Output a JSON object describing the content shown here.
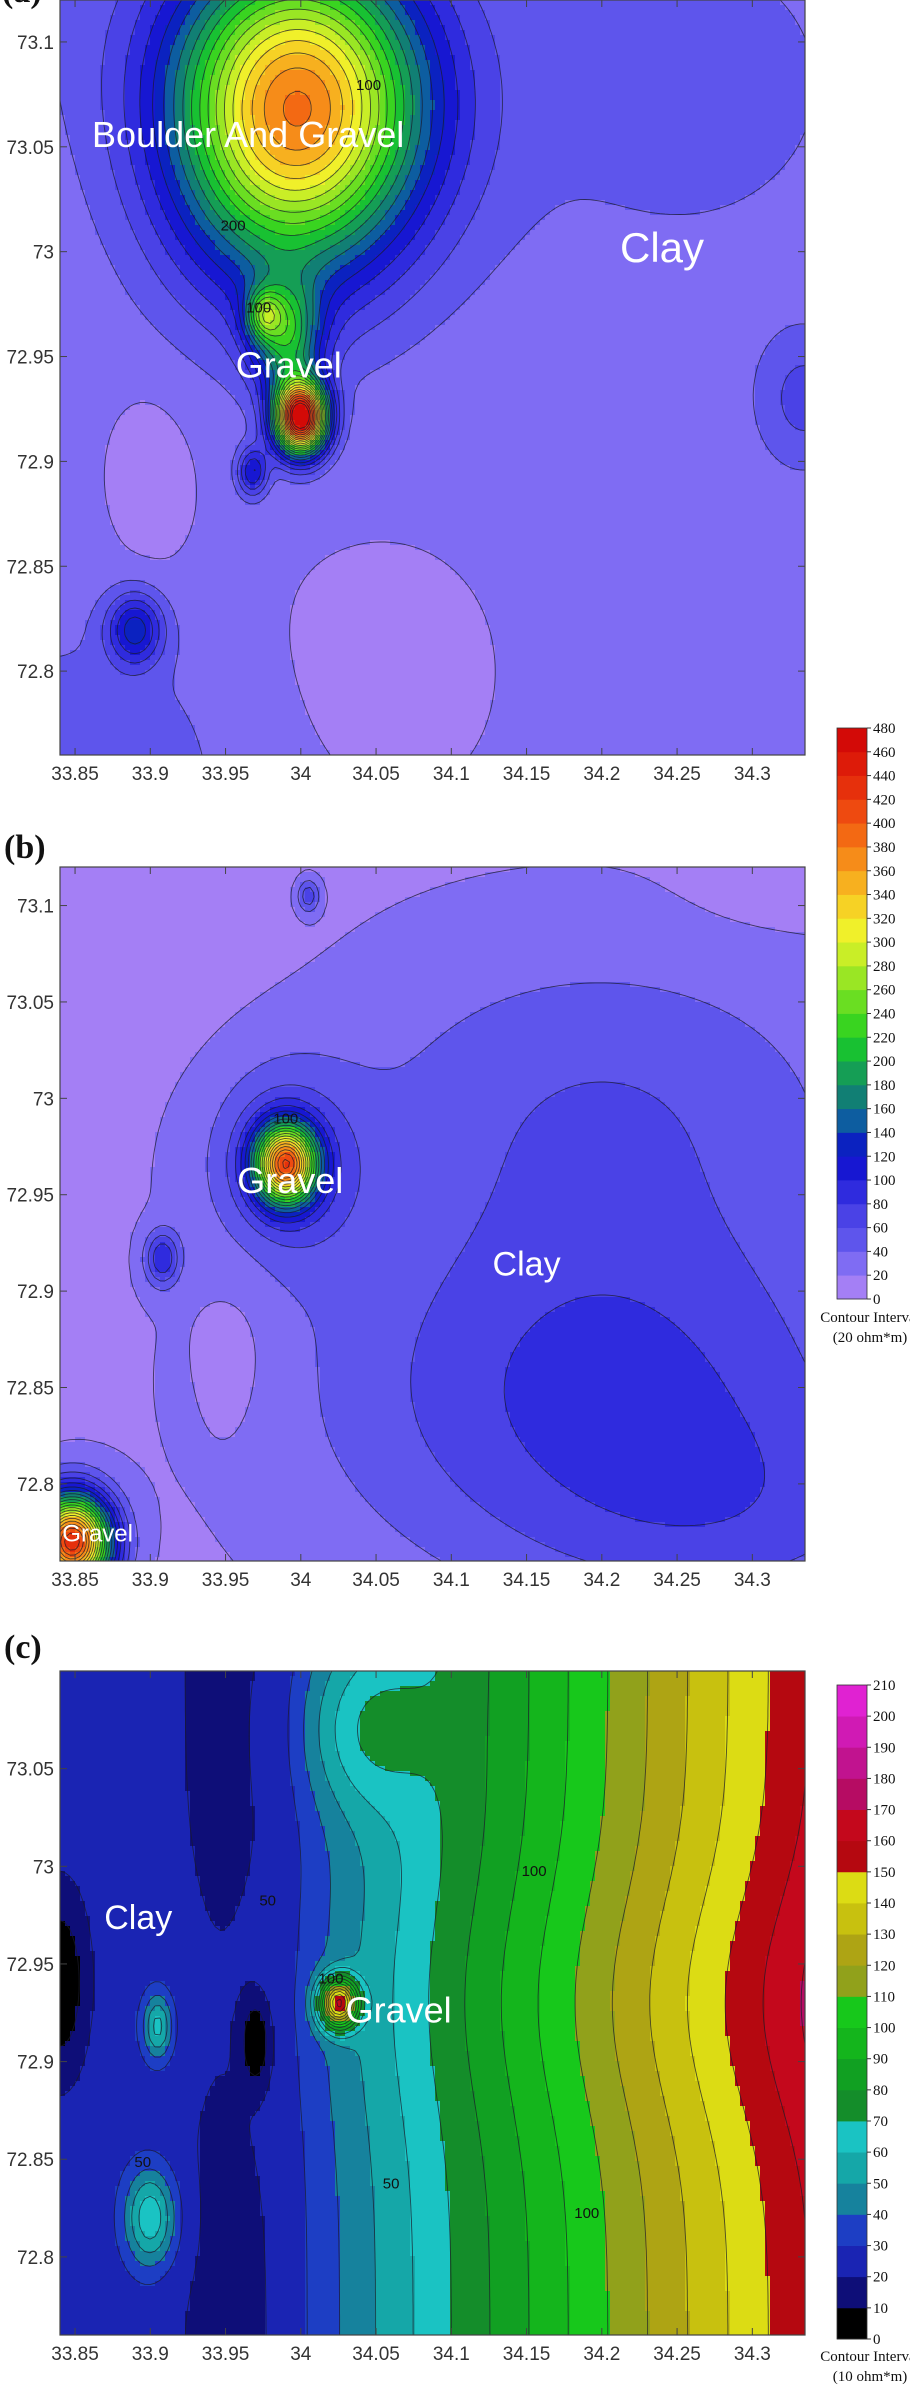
{
  "chart_data": [
    {
      "type": "contour",
      "panel_label": "(a)",
      "x_ticks": [
        "33.85",
        "33.9",
        "33.95",
        "34",
        "34.05",
        "34.1",
        "34.15",
        "34.2",
        "34.25",
        "34.3"
      ],
      "y_ticks": [
        "73.1",
        "73.05",
        "73",
        "72.95",
        "72.9",
        "72.85",
        "72.8"
      ],
      "xlim": [
        33.84,
        34.335
      ],
      "ylim": [
        72.76,
        73.12
      ],
      "contour_interval": 20,
      "contour_labels": [
        {
          "text": "100",
          "x": 34.045,
          "y": 73.077
        },
        {
          "text": "200",
          "x": 33.955,
          "y": 73.01
        },
        {
          "text": "100",
          "x": 33.972,
          "y": 72.971
        }
      ],
      "regions": [
        {
          "text": "Boulder And Gravel",
          "x": 33.965,
          "y": 73.05,
          "size": 36
        },
        {
          "text": "Clay",
          "x": 34.24,
          "y": 72.995,
          "size": 42
        },
        {
          "text": "Gravel",
          "x": 33.992,
          "y": 72.94,
          "size": 36
        }
      ],
      "peaks": [
        {
          "x": 33.998,
          "y": 73.07,
          "value": 350,
          "sx": 0.058,
          "sy": 0.05
        },
        {
          "x": 34.0,
          "y": 72.921,
          "value": 470,
          "sx": 0.012,
          "sy": 0.012
        },
        {
          "x": 33.99,
          "y": 72.96,
          "value": 150,
          "sx": 0.016,
          "sy": 0.018
        },
        {
          "x": 33.89,
          "y": 72.82,
          "value": 100,
          "sx": 0.013,
          "sy": 0.012
        },
        {
          "x": 33.968,
          "y": 72.895,
          "value": 95,
          "sx": 0.007,
          "sy": 0.008
        },
        {
          "x": 33.975,
          "y": 72.97,
          "value": 110,
          "sx": 0.008,
          "sy": 0.008
        },
        {
          "x": 34.335,
          "y": 72.93,
          "value": 40,
          "sx": 0.02,
          "sy": 0.02
        }
      ],
      "background": [
        {
          "x": 33.85,
          "y": 73.12,
          "value": 10,
          "sx": 0.08,
          "sy": 0.05
        },
        {
          "x": 33.86,
          "y": 72.75,
          "value": 30,
          "sx": 0.07,
          "sy": 0.05
        },
        {
          "x": 34.25,
          "y": 73.08,
          "value": 20,
          "sx": 0.12,
          "sy": 0.08
        },
        {
          "x": 33.98,
          "y": 73.0,
          "value": 30,
          "sx": 0.05,
          "sy": 0.04
        },
        {
          "x": 34.3,
          "y": 72.8,
          "value": 10,
          "sx": 0.1,
          "sy": 0.08
        }
      ],
      "base": 25,
      "valleys": [
        {
          "x": 33.9,
          "y": 72.89,
          "depth": 18,
          "sx": 0.02,
          "sy": 0.03
        },
        {
          "x": 34.06,
          "y": 72.8,
          "depth": 12,
          "sx": 0.07,
          "sy": 0.05
        }
      ]
    },
    {
      "type": "contour",
      "panel_label": "(b)",
      "x_ticks": [
        "33.85",
        "33.9",
        "33.95",
        "34",
        "34.05",
        "34.1",
        "34.15",
        "34.2",
        "34.25",
        "34.3"
      ],
      "y_ticks": [
        "73.1",
        "73.05",
        "73",
        "72.95",
        "72.9",
        "72.85",
        "72.8"
      ],
      "xlim": [
        33.84,
        34.335
      ],
      "ylim": [
        72.76,
        73.12
      ],
      "contour_interval": 20,
      "contour_labels": [
        {
          "text": "100",
          "x": 33.99,
          "y": 72.987
        }
      ],
      "regions": [
        {
          "text": "Gravel",
          "x": 33.993,
          "y": 72.951,
          "size": 36
        },
        {
          "text": "Clay",
          "x": 34.15,
          "y": 72.908,
          "size": 34
        },
        {
          "text": "Gravel",
          "x": 33.865,
          "y": 72.77,
          "size": 24
        }
      ],
      "peaks": [
        {
          "x": 33.99,
          "y": 72.966,
          "value": 340,
          "sx": 0.014,
          "sy": 0.014
        },
        {
          "x": 33.99,
          "y": 72.966,
          "value": 60,
          "sx": 0.035,
          "sy": 0.035
        },
        {
          "x": 33.848,
          "y": 72.77,
          "value": 420,
          "sx": 0.018,
          "sy": 0.017
        },
        {
          "x": 33.908,
          "y": 72.917,
          "value": 80,
          "sx": 0.008,
          "sy": 0.01
        },
        {
          "x": 34.005,
          "y": 73.105,
          "value": 60,
          "sx": 0.005,
          "sy": 0.006
        }
      ],
      "background": [
        {
          "x": 34.2,
          "y": 72.85,
          "value": 70,
          "sx": 0.13,
          "sy": 0.07
        },
        {
          "x": 34.3,
          "y": 72.78,
          "value": 30,
          "sx": 0.1,
          "sy": 0.04
        },
        {
          "x": 34.2,
          "y": 73.0,
          "value": 40,
          "sx": 0.12,
          "sy": 0.06
        }
      ],
      "base": 15,
      "valleys": [
        {
          "x": 33.86,
          "y": 73.1,
          "depth": 12,
          "sx": 0.07,
          "sy": 0.05
        },
        {
          "x": 33.96,
          "y": 72.87,
          "depth": 12,
          "sx": 0.02,
          "sy": 0.04
        },
        {
          "x": 34.3,
          "y": 73.1,
          "depth": 5,
          "sx": 0.05,
          "sy": 0.02
        }
      ]
    },
    {
      "type": "contour",
      "panel_label": "(c)",
      "x_ticks": [
        "33.85",
        "33.9",
        "33.95",
        "34",
        "34.05",
        "34.1",
        "34.15",
        "34.2",
        "34.25",
        "34.3"
      ],
      "y_ticks": [
        "73.05",
        "73",
        "72.95",
        "72.9",
        "72.85",
        "72.8"
      ],
      "xlim": [
        33.84,
        34.335
      ],
      "ylim": [
        72.76,
        73.1
      ],
      "contour_interval": 10,
      "contour_labels": [
        {
          "text": "50",
          "x": 33.978,
          "y": 72.98
        },
        {
          "text": "100",
          "x": 34.155,
          "y": 72.995
        },
        {
          "text": "50",
          "x": 33.895,
          "y": 72.846
        },
        {
          "text": "50",
          "x": 34.06,
          "y": 72.835
        },
        {
          "text": "100",
          "x": 34.19,
          "y": 72.82
        },
        {
          "text": "100",
          "x": 34.02,
          "y": 72.94
        }
      ],
      "regions": [
        {
          "text": "Clay",
          "x": 33.892,
          "y": 72.968,
          "size": 34
        },
        {
          "text": "Gravel",
          "x": 34.065,
          "y": 72.92,
          "size": 36
        }
      ],
      "peaks": [
        {
          "x": 34.025,
          "y": 72.93,
          "value": 120,
          "sx": 0.009,
          "sy": 0.009
        },
        {
          "x": 33.905,
          "y": 72.918,
          "value": 40,
          "sx": 0.007,
          "sy": 0.012
        },
        {
          "x": 33.9,
          "y": 72.82,
          "value": 45,
          "sx": 0.012,
          "sy": 0.018
        },
        {
          "x": 34.04,
          "y": 73.07,
          "value": 25,
          "sx": 0.03,
          "sy": 0.03
        }
      ],
      "background": [],
      "base": 0,
      "field": "gradient",
      "valleys": [
        {
          "x": 33.84,
          "y": 72.94,
          "depth": 25,
          "sx": 0.012,
          "sy": 0.03
        },
        {
          "x": 33.97,
          "y": 72.91,
          "depth": 25,
          "sx": 0.006,
          "sy": 0.014
        }
      ]
    }
  ],
  "colorbar_ab": {
    "ticks": [
      "0",
      "20",
      "40",
      "60",
      "80",
      "100",
      "120",
      "140",
      "160",
      "180",
      "200",
      "220",
      "240",
      "260",
      "280",
      "300",
      "320",
      "340",
      "360",
      "380",
      "400",
      "420",
      "440",
      "460",
      "480"
    ],
    "caption1": "Contour Interval",
    "caption2": "(20 ohm*m)"
  },
  "colorbar_c": {
    "ticks": [
      "0",
      "10",
      "20",
      "30",
      "40",
      "50",
      "60",
      "70",
      "80",
      "90",
      "100",
      "110",
      "120",
      "130",
      "140",
      "150",
      "160",
      "170",
      "180",
      "190",
      "200",
      "210"
    ],
    "caption1": "Contour Interval",
    "caption2": "(10 ohm*m)"
  },
  "colors_ab": [
    "#a47ff5",
    "#7f6cf3",
    "#5e55ec",
    "#4a42e6",
    "#2f2bde",
    "#1717d2",
    "#0b22c0",
    "#0d5da0",
    "#117f74",
    "#159e55",
    "#18c132",
    "#39d420",
    "#6ade22",
    "#9ae624",
    "#c9ee27",
    "#f0f02a",
    "#f6d225",
    "#f7b01f",
    "#f68c19",
    "#f36913",
    "#ee4a10",
    "#e6300c",
    "#dd1b09",
    "#d30a07"
  ],
  "colors_c": [
    "#000000",
    "#0e0e78",
    "#1a24b3",
    "#1d3ec4",
    "#16829d",
    "#15a7a8",
    "#1ac3c3",
    "#148d2a",
    "#11a022",
    "#14b51c",
    "#17c81b",
    "#91a11b",
    "#aea414",
    "#c8c10f",
    "#dcdc14",
    "#b50810",
    "#c4081c",
    "#b60c63",
    "#c1138f",
    "#d01ab4",
    "#e022d2"
  ]
}
